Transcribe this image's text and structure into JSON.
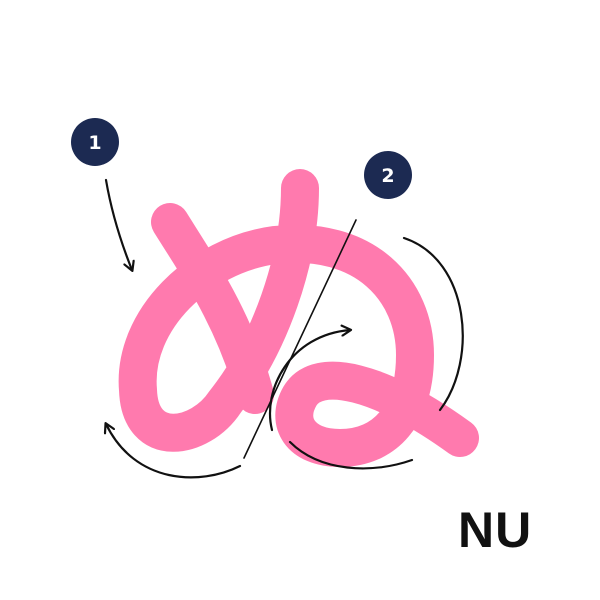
{
  "character": {
    "kana": "ぬ",
    "romaji": "NU"
  },
  "steps": [
    {
      "number": "1"
    },
    {
      "number": "2"
    }
  ],
  "colors": {
    "stroke": "#ff7aae",
    "badge_fill": "#1c2a52",
    "badge_text": "#ffffff",
    "arrow": "#111111",
    "background": "#ffffff"
  },
  "icons": {
    "step_1_arrow": "curved-arrow-icon",
    "stroke_2_arrow": "curved-arrow-icon"
  }
}
